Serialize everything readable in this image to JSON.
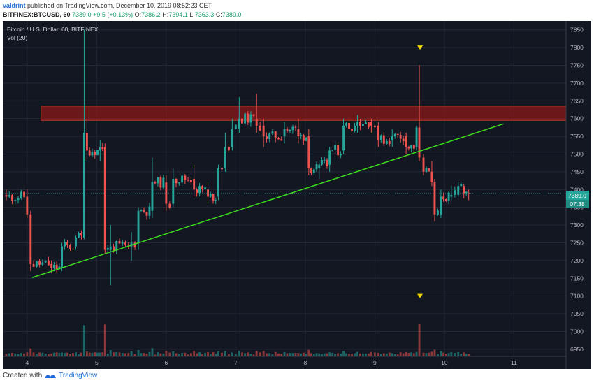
{
  "header": {
    "user": "valdrint",
    "published": "published on TradingView.com, December 10, 2019 08:52:23 CET",
    "symbol_line": "BITFINEX:BTCUSD, 60",
    "last": "7389.0",
    "change": "+9.5 (+0.13%)",
    "o_label": "O:",
    "o": "7386.2",
    "h_label": "H:",
    "h": "7394.1",
    "l_label": "L:",
    "l": "7363.3",
    "c_label": "C:",
    "c": "7389.0"
  },
  "legend": {
    "title": "Bitcoin / U.S. Dollar, 60, BITFINEX",
    "volume": "Vol (20)"
  },
  "price_badge": {
    "price": "7389.0",
    "countdown": "07:38"
  },
  "footer": {
    "created_with": "Created with",
    "brand": "TradingView"
  },
  "colors": {
    "up": "#26a69a",
    "down": "#ef5350",
    "trendline": "#3ddc1e",
    "zone": "#8b1a1a",
    "marker": "#f2d600",
    "background": "#131722"
  },
  "chart_data": {
    "type": "candlestick",
    "title": "Bitcoin / U.S. Dollar, 60, BITFINEX",
    "x_ticks": [
      "4",
      "5",
      "6",
      "7",
      "8",
      "9",
      "10",
      "11"
    ],
    "y_ticks": [
      6950,
      7000,
      7050,
      7100,
      7150,
      7200,
      7250,
      7300,
      7350,
      7400,
      7450,
      7500,
      7550,
      7600,
      7650,
      7700,
      7750,
      7800,
      7850
    ],
    "ylim": [
      6930,
      7875
    ],
    "xlim": [
      3.65,
      11.75
    ],
    "resistance_zone": [
      7595,
      7635
    ],
    "trendline": [
      {
        "x": 4.07,
        "y": 7152
      },
      {
        "x": 10.85,
        "y": 7585
      }
    ],
    "current_price": 7389.0,
    "markers": [
      {
        "x": 9.65,
        "y": 7800
      },
      {
        "x": 9.65,
        "y": 7100
      }
    ],
    "volume_axis_note": "volume bars in relative units (0-10)",
    "key_points": [
      {
        "x": 3.7,
        "o": 7385,
        "h": 7400,
        "l": 7370,
        "c": 7380
      },
      {
        "x": 4.0,
        "o": 7380,
        "h": 7400,
        "l": 7320,
        "c": 7330
      },
      {
        "x": 4.05,
        "o": 7330,
        "h": 7340,
        "l": 7170,
        "c": 7190
      },
      {
        "x": 4.35,
        "o": 7190,
        "h": 7200,
        "l": 7165,
        "c": 7180
      },
      {
        "x": 4.5,
        "o": 7180,
        "h": 7250,
        "l": 7170,
        "c": 7240
      },
      {
        "x": 4.7,
        "o": 7240,
        "h": 7270,
        "l": 7230,
        "c": 7265
      },
      {
        "x": 4.82,
        "o": 7265,
        "h": 7850,
        "l": 7260,
        "c": 7560
      },
      {
        "x": 4.86,
        "o": 7560,
        "h": 7600,
        "l": 7480,
        "c": 7510
      },
      {
        "x": 5.05,
        "o": 7510,
        "h": 7540,
        "l": 7480,
        "c": 7520
      },
      {
        "x": 5.12,
        "o": 7520,
        "h": 7530,
        "l": 7220,
        "c": 7230
      },
      {
        "x": 5.2,
        "o": 7230,
        "h": 7300,
        "l": 7130,
        "c": 7240
      },
      {
        "x": 5.5,
        "o": 7240,
        "h": 7280,
        "l": 7200,
        "c": 7250
      },
      {
        "x": 5.6,
        "o": 7250,
        "h": 7350,
        "l": 7230,
        "c": 7340
      },
      {
        "x": 5.8,
        "o": 7340,
        "h": 7490,
        "l": 7320,
        "c": 7420
      },
      {
        "x": 6.0,
        "o": 7420,
        "h": 7440,
        "l": 7340,
        "c": 7360
      },
      {
        "x": 6.1,
        "o": 7360,
        "h": 7460,
        "l": 7350,
        "c": 7430
      },
      {
        "x": 6.4,
        "o": 7430,
        "h": 7470,
        "l": 7380,
        "c": 7400
      },
      {
        "x": 6.6,
        "o": 7400,
        "h": 7420,
        "l": 7360,
        "c": 7380
      },
      {
        "x": 6.75,
        "o": 7380,
        "h": 7470,
        "l": 7370,
        "c": 7460
      },
      {
        "x": 6.85,
        "o": 7460,
        "h": 7560,
        "l": 7450,
        "c": 7520
      },
      {
        "x": 6.95,
        "o": 7520,
        "h": 7600,
        "l": 7510,
        "c": 7570
      },
      {
        "x": 7.05,
        "o": 7570,
        "h": 7660,
        "l": 7560,
        "c": 7600
      },
      {
        "x": 7.3,
        "o": 7600,
        "h": 7670,
        "l": 7560,
        "c": 7580
      },
      {
        "x": 7.4,
        "o": 7580,
        "h": 7600,
        "l": 7520,
        "c": 7550
      },
      {
        "x": 7.7,
        "o": 7550,
        "h": 7590,
        "l": 7530,
        "c": 7570
      },
      {
        "x": 7.9,
        "o": 7570,
        "h": 7600,
        "l": 7530,
        "c": 7550
      },
      {
        "x": 8.05,
        "o": 7550,
        "h": 7570,
        "l": 7440,
        "c": 7460
      },
      {
        "x": 8.2,
        "o": 7460,
        "h": 7480,
        "l": 7430,
        "c": 7470
      },
      {
        "x": 8.35,
        "o": 7470,
        "h": 7520,
        "l": 7450,
        "c": 7510
      },
      {
        "x": 8.55,
        "o": 7510,
        "h": 7600,
        "l": 7500,
        "c": 7580
      },
      {
        "x": 8.75,
        "o": 7580,
        "h": 7610,
        "l": 7560,
        "c": 7590
      },
      {
        "x": 8.95,
        "o": 7590,
        "h": 7600,
        "l": 7560,
        "c": 7580
      },
      {
        "x": 9.05,
        "o": 7580,
        "h": 7590,
        "l": 7520,
        "c": 7540
      },
      {
        "x": 9.25,
        "o": 7540,
        "h": 7570,
        "l": 7520,
        "c": 7550
      },
      {
        "x": 9.45,
        "o": 7550,
        "h": 7560,
        "l": 7500,
        "c": 7520
      },
      {
        "x": 9.6,
        "o": 7520,
        "h": 7580,
        "l": 7510,
        "c": 7575
      },
      {
        "x": 9.64,
        "o": 7575,
        "h": 7750,
        "l": 7480,
        "c": 7490
      },
      {
        "x": 9.7,
        "o": 7490,
        "h": 7500,
        "l": 7440,
        "c": 7450
      },
      {
        "x": 9.82,
        "o": 7450,
        "h": 7480,
        "l": 7410,
        "c": 7420
      },
      {
        "x": 9.86,
        "o": 7420,
        "h": 7430,
        "l": 7310,
        "c": 7330
      },
      {
        "x": 9.95,
        "o": 7330,
        "h": 7400,
        "l": 7320,
        "c": 7380
      },
      {
        "x": 10.1,
        "o": 7380,
        "h": 7410,
        "l": 7370,
        "c": 7385
      },
      {
        "x": 10.2,
        "o": 7385,
        "h": 7420,
        "l": 7380,
        "c": 7410
      },
      {
        "x": 10.28,
        "o": 7410,
        "h": 7415,
        "l": 7375,
        "c": 7390
      },
      {
        "x": 10.35,
        "o": 7390,
        "h": 7400,
        "l": 7370,
        "c": 7389
      }
    ]
  }
}
